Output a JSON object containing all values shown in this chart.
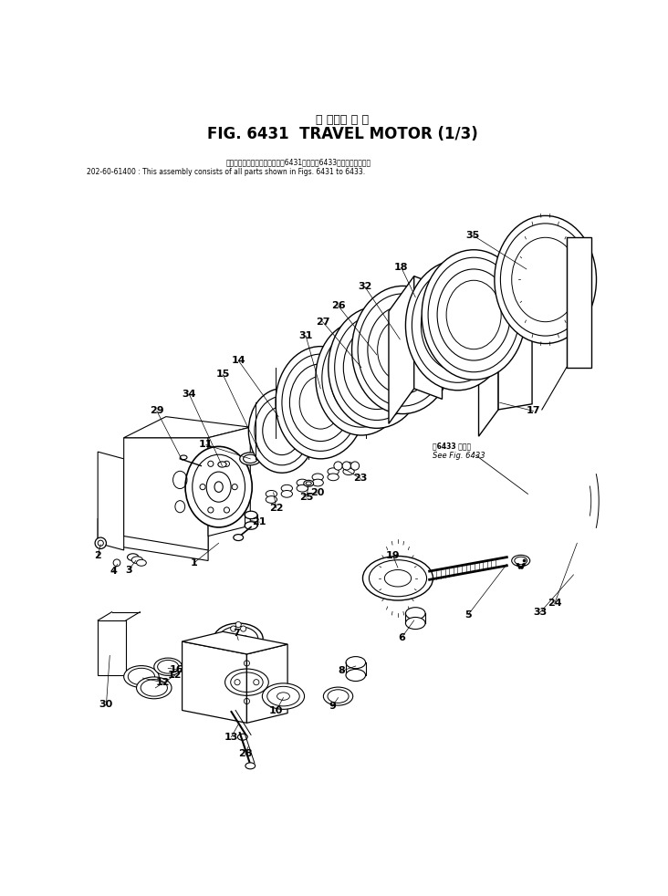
{
  "title_jp": "走 行　モ ー タ",
  "title_en": "FIG. 6431  TRAVEL MOTOR (1/3)",
  "note_jp": "このアセンブリの構成部品は第6431図から第6433図まで含みます。",
  "note_part": "202-60-61400 : This assembly consists of all parts shown in Figs. 6431 to 6433.",
  "see_fig_jp": "第6433 図参照",
  "see_fig_en": "See Fig. 6433",
  "bg_color": "#ffffff",
  "line_color": "#000000"
}
